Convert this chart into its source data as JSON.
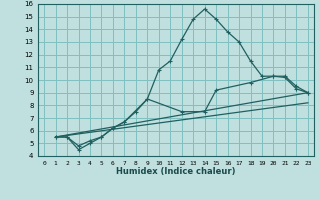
{
  "xlabel": "Humidex (Indice chaleur)",
  "bg_color": "#c0e0e0",
  "grid_color": "#80c0c0",
  "line_color": "#206060",
  "xlim": [
    -0.5,
    23.5
  ],
  "ylim": [
    4,
    16
  ],
  "xticks": [
    0,
    1,
    2,
    3,
    4,
    5,
    6,
    7,
    8,
    9,
    10,
    11,
    12,
    13,
    14,
    15,
    16,
    17,
    18,
    19,
    20,
    21,
    22,
    23
  ],
  "yticks": [
    4,
    5,
    6,
    7,
    8,
    9,
    10,
    11,
    12,
    13,
    14,
    15,
    16
  ],
  "line1_x": [
    1,
    2,
    3,
    4,
    5,
    6,
    7,
    8,
    9,
    10,
    11,
    12,
    13,
    14,
    15,
    16,
    17,
    18,
    19,
    20,
    21,
    22,
    23
  ],
  "line1_y": [
    5.5,
    5.5,
    4.5,
    5.0,
    5.5,
    6.2,
    6.7,
    7.5,
    8.5,
    10.8,
    11.5,
    13.2,
    14.8,
    15.6,
    14.8,
    13.8,
    13.0,
    11.5,
    10.3,
    10.3,
    10.2,
    9.3,
    9.0
  ],
  "line2_x": [
    1,
    2,
    3,
    4,
    5,
    6,
    7,
    9,
    12,
    14,
    15,
    18,
    20,
    21,
    22,
    23
  ],
  "line2_y": [
    5.5,
    5.5,
    4.8,
    5.2,
    5.5,
    6.2,
    6.7,
    8.5,
    7.5,
    7.5,
    9.2,
    9.8,
    10.3,
    10.3,
    9.5,
    9.0
  ],
  "line3_x": [
    1,
    23
  ],
  "line3_y": [
    5.5,
    9.0
  ],
  "line4_x": [
    1,
    23
  ],
  "line4_y": [
    5.5,
    8.2
  ]
}
